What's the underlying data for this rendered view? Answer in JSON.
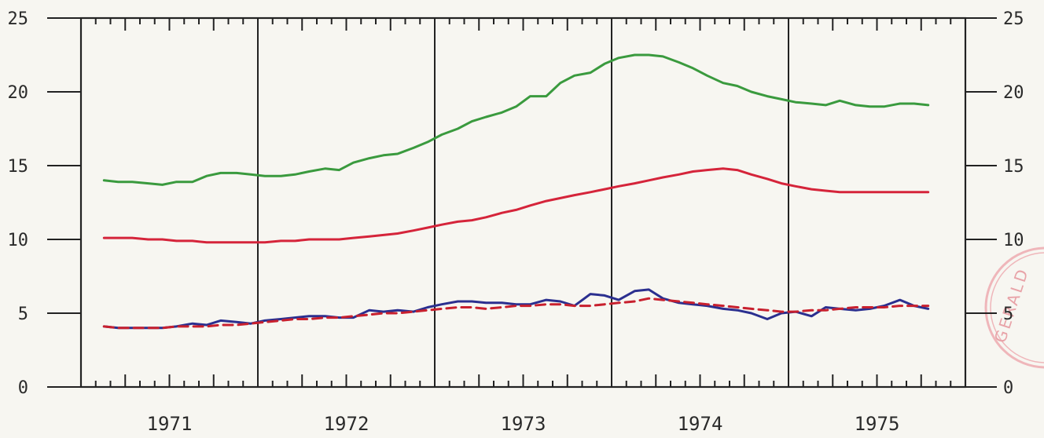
{
  "chart_data": {
    "type": "line",
    "title": "",
    "xlabel": "",
    "ylabel": "",
    "ylim": [
      0,
      25
    ],
    "yticks": [
      0,
      5,
      10,
      15,
      20,
      25
    ],
    "ytick_labels": [
      "0",
      "5",
      "10",
      "15",
      "20",
      "25"
    ],
    "xlim": [
      1970.5,
      1975.5
    ],
    "year_labels": [
      "1971",
      "1972",
      "1973",
      "1974",
      "1975"
    ],
    "year_dividers": [
      1971.5,
      1972.5,
      1973.5,
      1974.5
    ],
    "grid": false,
    "legend": "none",
    "x": [
      1970.63,
      1970.71,
      1970.79,
      1970.88,
      1970.96,
      1971.04,
      1971.13,
      1971.21,
      1971.29,
      1971.38,
      1971.46,
      1971.54,
      1971.63,
      1971.71,
      1971.79,
      1971.88,
      1971.96,
      1972.04,
      1972.13,
      1972.21,
      1972.29,
      1972.38,
      1972.46,
      1972.54,
      1972.63,
      1972.71,
      1972.79,
      1972.88,
      1972.96,
      1973.04,
      1973.13,
      1973.21,
      1973.29,
      1973.38,
      1973.46,
      1973.54,
      1973.63,
      1973.71,
      1973.79,
      1973.88,
      1973.96,
      1974.04,
      1974.13,
      1974.21,
      1974.29,
      1974.38,
      1974.46,
      1974.54,
      1974.63,
      1974.71,
      1974.79,
      1974.88,
      1974.96,
      1975.04,
      1975.13,
      1975.21,
      1975.29
    ],
    "series": [
      {
        "color": "#3a9a3e",
        "style": "solid",
        "values": [
          14.0,
          13.9,
          13.9,
          13.8,
          13.7,
          13.9,
          13.9,
          14.3,
          14.5,
          14.5,
          14.4,
          14.3,
          14.3,
          14.4,
          14.6,
          14.8,
          14.7,
          15.2,
          15.5,
          15.7,
          15.8,
          16.2,
          16.6,
          17.1,
          17.5,
          18.0,
          18.3,
          18.6,
          19.0,
          19.7,
          19.7,
          20.6,
          21.1,
          21.3,
          21.9,
          22.3,
          22.5,
          22.5,
          22.4,
          22.0,
          21.6,
          21.1,
          20.6,
          20.4,
          20.0,
          19.7,
          19.5,
          19.3,
          19.2,
          19.1,
          19.4,
          19.1,
          19.0,
          19.0,
          19.2,
          19.2,
          19.1
        ]
      },
      {
        "color": "#d5243a",
        "style": "solid",
        "values": [
          10.1,
          10.1,
          10.1,
          10.0,
          10.0,
          9.9,
          9.9,
          9.8,
          9.8,
          9.8,
          9.8,
          9.8,
          9.9,
          9.9,
          10.0,
          10.0,
          10.0,
          10.1,
          10.2,
          10.3,
          10.4,
          10.6,
          10.8,
          11.0,
          11.2,
          11.3,
          11.5,
          11.8,
          12.0,
          12.3,
          12.6,
          12.8,
          13.0,
          13.2,
          13.4,
          13.6,
          13.8,
          14.0,
          14.2,
          14.4,
          14.6,
          14.7,
          14.8,
          14.7,
          14.4,
          14.1,
          13.8,
          13.6,
          13.4,
          13.3,
          13.2,
          13.2,
          13.2,
          13.2,
          13.2,
          13.2,
          13.2
        ]
      },
      {
        "color": "#2b2f8f",
        "style": "solid",
        "values": [
          4.1,
          4.0,
          4.0,
          4.0,
          4.0,
          4.1,
          4.3,
          4.2,
          4.5,
          4.4,
          4.3,
          4.5,
          4.6,
          4.7,
          4.8,
          4.8,
          4.7,
          4.7,
          5.2,
          5.1,
          5.2,
          5.1,
          5.4,
          5.6,
          5.8,
          5.8,
          5.7,
          5.7,
          5.6,
          5.6,
          5.9,
          5.8,
          5.5,
          6.3,
          6.2,
          5.9,
          6.5,
          6.6,
          6.0,
          5.7,
          5.6,
          5.5,
          5.3,
          5.2,
          5.0,
          4.6,
          5.0,
          5.1,
          4.8,
          5.4,
          5.3,
          5.2,
          5.3,
          5.5,
          5.9,
          5.5,
          5.3
        ]
      },
      {
        "color": "#c8202e",
        "style": "dashed",
        "values": [
          4.1,
          4.0,
          4.0,
          4.0,
          4.0,
          4.1,
          4.1,
          4.1,
          4.2,
          4.2,
          4.3,
          4.4,
          4.5,
          4.6,
          4.6,
          4.7,
          4.7,
          4.8,
          4.9,
          5.0,
          5.0,
          5.1,
          5.2,
          5.3,
          5.4,
          5.4,
          5.3,
          5.4,
          5.5,
          5.5,
          5.6,
          5.6,
          5.5,
          5.5,
          5.6,
          5.7,
          5.8,
          6.0,
          5.9,
          5.8,
          5.7,
          5.6,
          5.5,
          5.4,
          5.3,
          5.2,
          5.1,
          5.1,
          5.2,
          5.2,
          5.3,
          5.4,
          5.4,
          5.4,
          5.5,
          5.5,
          5.5
        ]
      }
    ]
  },
  "stamp": {
    "text": "GERALD",
    "color": "#e8a3a8"
  }
}
